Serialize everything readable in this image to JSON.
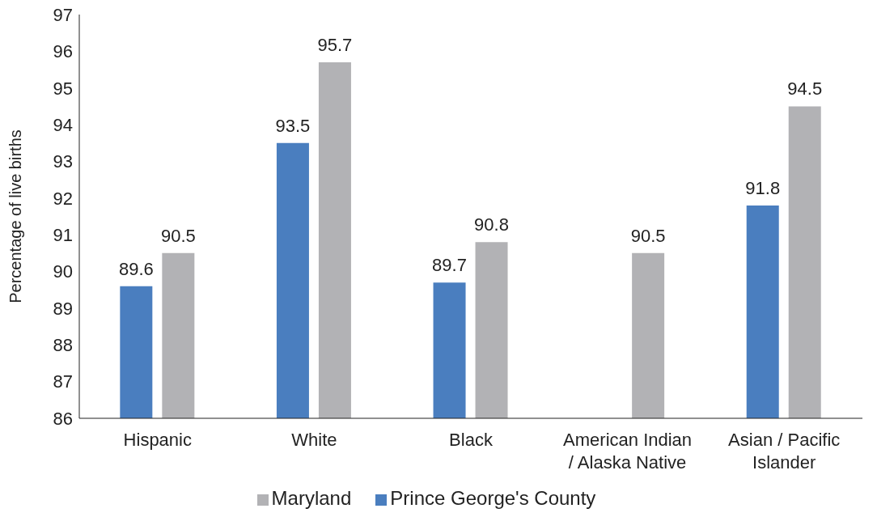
{
  "chart_data": {
    "type": "bar",
    "ylabel": "Percentage of live births",
    "categories": [
      "Hispanic",
      "White",
      "Black",
      "American Indian / Alaska Native",
      "Asian / Pacific Islander"
    ],
    "series": [
      {
        "name": "Prince George's County",
        "color": "#4a7ebf",
        "values": [
          89.6,
          93.5,
          89.7,
          null,
          91.8
        ]
      },
      {
        "name": "Maryland",
        "color": "#b2b2b5",
        "values": [
          90.5,
          95.7,
          90.8,
          90.5,
          94.5
        ]
      }
    ],
    "ylim": [
      86,
      97
    ],
    "yticks": [
      86,
      87,
      88,
      89,
      90,
      91,
      92,
      93,
      94,
      95,
      96,
      97
    ],
    "grid": false,
    "legend": "bottom",
    "data_labels": true
  }
}
